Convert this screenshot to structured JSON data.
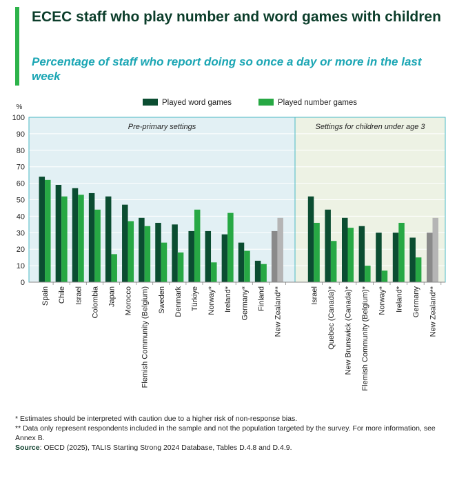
{
  "title": "ECEC staff who play number and word games with children",
  "subtitle": "Percentage of staff who report doing so once a day or more in the last week",
  "chart_data": {
    "type": "bar",
    "ylabel": "%",
    "ylim": [
      0,
      100
    ],
    "yticks": [
      0,
      10,
      20,
      30,
      40,
      50,
      60,
      70,
      80,
      90,
      100
    ],
    "grid": true,
    "legend": "top-center",
    "legend_entries": [
      "Played word games",
      "Played number games"
    ],
    "colors": {
      "word": "#0b4d31",
      "number": "#27a844",
      "word_highlight": "#8a8a8a",
      "number_highlight": "#b5b5b5",
      "panel_left_bg": "#e2f0f4",
      "panel_right_bg": "#edf2e4",
      "panel_border": "#4ab9c4"
    },
    "panels": [
      {
        "name": "Pre-primary settings",
        "categories": [
          "Spain",
          "Chile",
          "Israel",
          "Colombia",
          "Japan",
          "Morocco",
          "Flemish Community (Belgium)",
          "Sweden",
          "Denmark",
          "Türkiye",
          "Norway*",
          "Ireland*",
          "Germany*",
          "Finland",
          "New Zealand**"
        ],
        "series": [
          {
            "name": "Played word games",
            "values": [
              64,
              59,
              57,
              54,
              52,
              47,
              39,
              36,
              35,
              31,
              31,
              29,
              24,
              13,
              31
            ]
          },
          {
            "name": "Played number games",
            "values": [
              62,
              52,
              53,
              44,
              17,
              37,
              34,
              24,
              18,
              44,
              12,
              42,
              19,
              11,
              39
            ]
          }
        ],
        "highlight": [
          "New Zealand**"
        ]
      },
      {
        "name": "Settings for children under age 3",
        "categories": [
          "Israel",
          "Quebec (Canada)*",
          "New Brunswick (Canada)*",
          "Flemish Community (Belgium)*",
          "Norway*",
          "Ireland*",
          "Germany",
          "New Zealand**"
        ],
        "series": [
          {
            "name": "Played word games",
            "values": [
              52,
              44,
              39,
              34,
              30,
              30,
              27,
              30
            ]
          },
          {
            "name": "Played number games",
            "values": [
              36,
              25,
              33,
              10,
              7,
              36,
              15,
              39
            ]
          }
        ],
        "highlight": [
          "New Zealand**"
        ]
      }
    ]
  },
  "notes": {
    "note1": "* Estimates should be interpreted with caution due to a higher risk of non-response bias.",
    "note2": "** Data only represent respondents included in the sample and not the population targeted by the survey. For more information, see Annex B.",
    "source_label": "Source",
    "source_text": ": OECD (2025), TALIS Starting Strong 2024 Database, Tables D.4.8 and D.4.9."
  }
}
